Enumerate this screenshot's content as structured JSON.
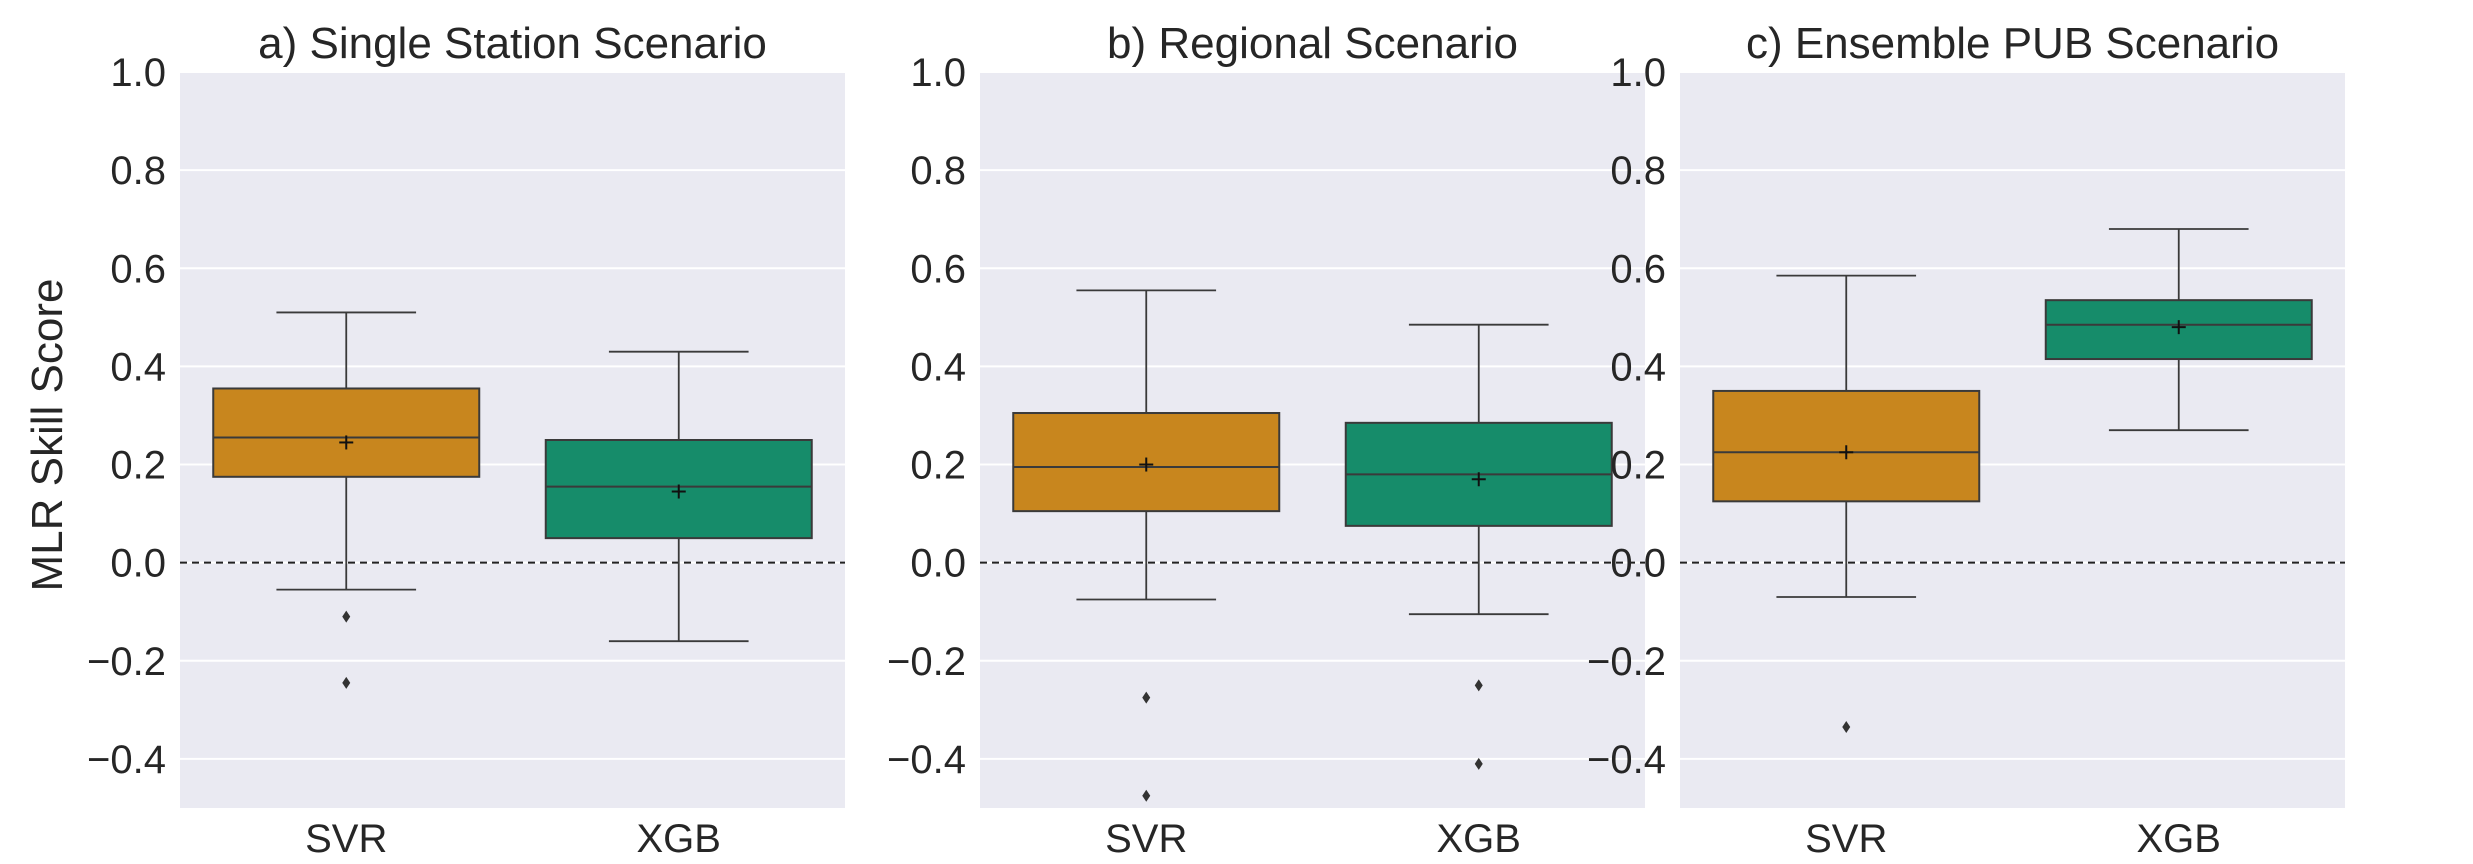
{
  "chart_data": {
    "type": "boxplot",
    "ylabel": "MLR Skill Score",
    "ylim": [
      -0.5,
      1.0
    ],
    "yticks": [
      -0.4,
      -0.2,
      0.0,
      0.2,
      0.4,
      0.6,
      0.8,
      1.0
    ],
    "ytick_labels": [
      "−0.4",
      "−0.2",
      "0.0",
      "0.2",
      "0.4",
      "0.6",
      "0.8",
      "1.0"
    ],
    "reference_line": 0.0,
    "categories": [
      "SVR",
      "XGB"
    ],
    "colors": {
      "SVR": "#c8861e",
      "XGB": "#168c6a",
      "background": "#eaeaf2",
      "grid": "#ffffff"
    },
    "panels": [
      {
        "title": "a) Single Station Scenario",
        "boxes": [
          {
            "label": "SVR",
            "whisker_low": -0.055,
            "q1": 0.175,
            "median": 0.255,
            "mean": 0.245,
            "q3": 0.355,
            "whisker_high": 0.51,
            "outliers": [
              -0.11,
              -0.245
            ]
          },
          {
            "label": "XGB",
            "whisker_low": -0.16,
            "q1": 0.05,
            "median": 0.155,
            "mean": 0.145,
            "q3": 0.25,
            "whisker_high": 0.43,
            "outliers": []
          }
        ]
      },
      {
        "title": "b) Regional Scenario",
        "boxes": [
          {
            "label": "SVR",
            "whisker_low": -0.075,
            "q1": 0.105,
            "median": 0.195,
            "mean": 0.2,
            "q3": 0.305,
            "whisker_high": 0.555,
            "outliers": [
              -0.275,
              -0.475
            ]
          },
          {
            "label": "XGB",
            "whisker_low": -0.105,
            "q1": 0.075,
            "median": 0.18,
            "mean": 0.17,
            "q3": 0.285,
            "whisker_high": 0.485,
            "outliers": [
              -0.25,
              -0.41
            ]
          }
        ]
      },
      {
        "title": "c) Ensemble PUB Scenario",
        "boxes": [
          {
            "label": "SVR",
            "whisker_low": -0.07,
            "q1": 0.125,
            "median": 0.225,
            "mean": 0.225,
            "q3": 0.35,
            "whisker_high": 0.585,
            "outliers": [
              -0.335
            ]
          },
          {
            "label": "XGB",
            "whisker_low": 0.27,
            "q1": 0.415,
            "median": 0.485,
            "mean": 0.48,
            "q3": 0.535,
            "whisker_high": 0.68,
            "outliers": []
          }
        ]
      }
    ]
  }
}
